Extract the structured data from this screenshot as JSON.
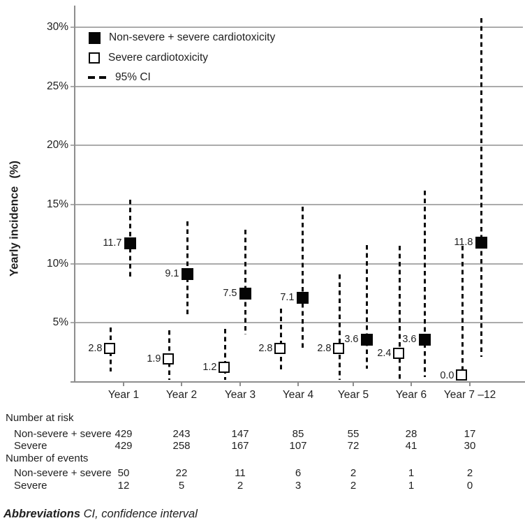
{
  "figure": {
    "y_axis": {
      "title_main": "Yearly incidence",
      "title_unit": "(%)",
      "ticks": [
        {
          "label": "30%",
          "value": 30
        },
        {
          "label": "25%",
          "value": 25
        },
        {
          "label": "20%",
          "value": 20
        },
        {
          "label": "15%",
          "value": 15
        },
        {
          "label": "10%",
          "value": 10
        },
        {
          "label": "5%",
          "value": 5
        }
      ]
    },
    "legend": [
      {
        "marker": "filled-square",
        "label": "Non-severe + severe cardiotoxicity"
      },
      {
        "marker": "open-square",
        "label": "Severe cardiotoxicity"
      },
      {
        "marker": "dashed-line",
        "label": "95% CI"
      }
    ],
    "colors": {
      "marker": "#050505",
      "grid": "#ababab",
      "axis": "#8e8e8e",
      "text": "#1f1f1f"
    }
  },
  "chart_data": {
    "type": "scatter",
    "title": "",
    "xlabel": "",
    "ylabel": "Yearly incidence (%)",
    "ylim": [
      0,
      31
    ],
    "grid": "horizontal",
    "legend_position": "top-left-inside",
    "categories": [
      "Year 1",
      "Year 2",
      "Year 3",
      "Year 4",
      "Year 5",
      "Year 6",
      "Year 7 –12"
    ],
    "series": [
      {
        "name": "Non-severe + severe cardiotoxicity",
        "marker": "filled-square",
        "values": [
          11.7,
          9.1,
          7.5,
          7.1,
          3.6,
          3.6,
          11.8
        ],
        "labels": [
          "11.7",
          "9.1",
          "7.5",
          "7.1",
          "3.6",
          "3.6",
          "11.8"
        ],
        "ci_low": [
          8.7,
          5.5,
          4.0,
          2.7,
          1.1,
          0.4,
          2.1
        ],
        "ci_high": [
          15.4,
          13.6,
          12.9,
          14.8,
          11.6,
          16.2,
          30.8
        ]
      },
      {
        "name": "Severe cardiotoxicity",
        "marker": "open-square",
        "values": [
          2.8,
          1.9,
          1.2,
          2.8,
          2.8,
          2.4,
          0.0
        ],
        "labels": [
          "2.8",
          "1.9",
          "1.2",
          "2.8",
          "2.8",
          "2.4",
          "0.0"
        ],
        "ci_low": [
          0.9,
          0.2,
          0.2,
          0.8,
          0.2,
          0.2,
          0.0
        ],
        "ci_high": [
          4.6,
          4.4,
          4.5,
          6.2,
          9.1,
          11.5,
          11.5
        ]
      }
    ],
    "ci_label": "95% CI"
  },
  "table": {
    "sections": [
      {
        "title": "Number at risk",
        "rows": [
          {
            "label": "Non-severe + severe",
            "values": [
              "429",
              "243",
              "147",
              "85",
              "55",
              "28",
              "17"
            ]
          },
          {
            "label": "Severe",
            "values": [
              "429",
              "258",
              "167",
              "107",
              "72",
              "41",
              "30"
            ]
          }
        ]
      },
      {
        "title": "Number of events",
        "rows": [
          {
            "label": "Non-severe + severe",
            "values": [
              "50",
              "22",
              "11",
              "6",
              "2",
              "1",
              "2"
            ]
          },
          {
            "label": "Severe",
            "values": [
              "12",
              "5",
              "2",
              "3",
              "2",
              "1",
              "0"
            ]
          }
        ]
      }
    ]
  },
  "footnote": {
    "bold": "Abbreviations",
    "rest": " CI, confidence interval"
  }
}
